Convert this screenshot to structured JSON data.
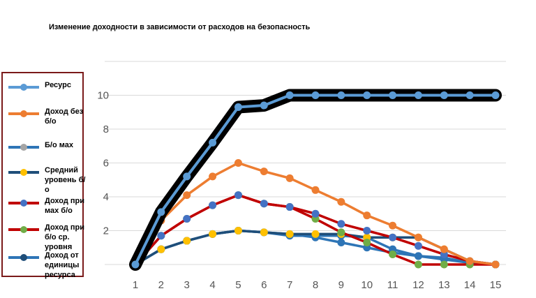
{
  "chart_data": {
    "type": "line",
    "title": "Изменение доходности в зависимости от расходов на безопасность",
    "x": [
      1,
      2,
      3,
      4,
      5,
      6,
      7,
      8,
      9,
      10,
      11,
      12,
      13,
      14,
      15
    ],
    "ylim": [
      0,
      12
    ],
    "yticks": [
      2,
      4,
      6,
      8,
      10
    ],
    "grid": true,
    "legend_position": "left",
    "series": [
      {
        "name": "Ресурс",
        "color": "#5b9bd5",
        "glow": true,
        "values": [
          0,
          3.1,
          5.2,
          7.2,
          9.3,
          9.4,
          10,
          10,
          10,
          10,
          10,
          10,
          10,
          10,
          10
        ]
      },
      {
        "name": "Доход без б/о",
        "color": "#ed7d31",
        "values": [
          0,
          2.6,
          4.1,
          5.2,
          6.0,
          5.5,
          5.1,
          4.4,
          3.7,
          2.9,
          2.3,
          1.6,
          0.9,
          0.2,
          0
        ]
      },
      {
        "name": "Б/о мах",
        "color": "#2e75b6",
        "values": [
          0,
          0.9,
          1.4,
          1.8,
          2.0,
          1.9,
          1.8,
          1.6,
          1.3,
          1.0,
          0.7,
          0.5,
          0.3,
          0.1,
          0
        ]
      },
      {
        "name": "Средний уровень б/о",
        "color": "#1f4e79",
        "marker_color": "#ffc000",
        "values": [
          0,
          0.9,
          1.4,
          1.8,
          2.0,
          1.9,
          1.8,
          1.8,
          1.8,
          1.6,
          1.6,
          1.6,
          0.9,
          0.2,
          0
        ]
      },
      {
        "name": "Доход при мах б/о",
        "color": "#c00000",
        "marker_color": "#4472c4",
        "values": [
          0,
          1.7,
          2.7,
          3.5,
          4.1,
          3.6,
          3.4,
          3.0,
          2.4,
          2.0,
          1.6,
          1.1,
          0.6,
          0.2,
          0
        ]
      },
      {
        "name": "Доход при б/о ср. уровня",
        "color": "#c00000",
        "marker_color": "#70ad47",
        "values": [
          0,
          1.7,
          2.7,
          3.5,
          4.1,
          3.6,
          3.4,
          2.7,
          1.9,
          1.3,
          0.6,
          0,
          0,
          0,
          0
        ]
      },
      {
        "name": "Доход от единицы ресурса",
        "color": "#2e75b6",
        "marker_color": "#2e75b6",
        "values": [
          0,
          0.9,
          1.4,
          1.8,
          2.0,
          1.9,
          1.7,
          1.7,
          1.7,
          1.6,
          0.9,
          0.5,
          0.4,
          0.1,
          0
        ]
      }
    ]
  },
  "legend": {
    "items": [
      {
        "label": "Ресурс",
        "color": "#5b9bd5",
        "marker": "#5b9bd5"
      },
      {
        "label": "Доход без б/о",
        "color": "#ed7d31",
        "marker": "#ed7d31"
      },
      {
        "label": "Б/о мах",
        "color": "#2e75b6",
        "marker": "#a5a5a5"
      },
      {
        "label": "Средний уровень б/о",
        "color": "#1f4e79",
        "marker": "#ffc000"
      },
      {
        "label": "Доход при мах б/о",
        "color": "#c00000",
        "marker": "#4472c4"
      },
      {
        "label": "Доход при б/о ср. уровня",
        "color": "#c00000",
        "marker": "#70ad47"
      },
      {
        "label": "Доход от единицы ресурса",
        "color": "#2e75b6",
        "marker": "#1f4e79"
      }
    ]
  }
}
